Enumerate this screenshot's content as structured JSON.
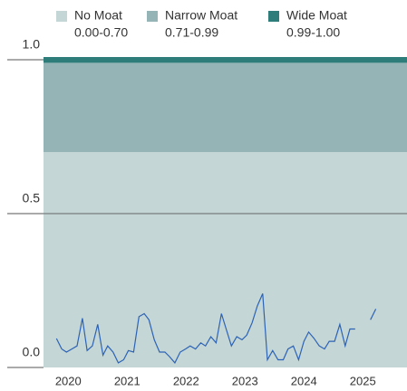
{
  "chart_data": {
    "type": "line",
    "bands": [
      {
        "name": "No Moat",
        "label": "0.00-0.70",
        "range": [
          0.0,
          0.7
        ],
        "color": "#c4d6d6"
      },
      {
        "name": "Narrow Moat",
        "label": "0.71-0.99",
        "range": [
          0.71,
          0.99
        ],
        "color": "#94b4b5"
      },
      {
        "name": "Wide Moat",
        "label": "0.99-1.00",
        "range": [
          0.99,
          1.0
        ],
        "color": "#2e7d7a"
      }
    ],
    "x": [
      2019.8,
      2019.89,
      2019.97,
      2020.06,
      2020.15,
      2020.24,
      2020.32,
      2020.41,
      2020.5,
      2020.59,
      2020.67,
      2020.76,
      2020.85,
      2020.94,
      2021.02,
      2021.11,
      2021.2,
      2021.29,
      2021.37,
      2021.46,
      2021.55,
      2021.64,
      2021.72,
      2021.81,
      2021.9,
      2021.99,
      2022.07,
      2022.16,
      2022.25,
      2022.33,
      2022.42,
      2022.51,
      2022.6,
      2022.68,
      2022.77,
      2022.86,
      2022.95,
      2023.03,
      2023.12,
      2023.21,
      2023.3,
      2023.38,
      2023.47,
      2023.56,
      2023.65,
      2023.73,
      2023.82,
      2023.91,
      2024.0,
      2024.08,
      2024.17,
      2024.26,
      2024.35,
      2024.43,
      2024.52,
      2024.61,
      2024.7,
      2024.78,
      2024.87,
      2024.96
    ],
    "series": [
      {
        "color": "#2d63b5",
        "values": [
          0.094,
          0.06,
          0.05,
          0.06,
          0.07,
          0.16,
          0.055,
          0.07,
          0.14,
          0.04,
          0.07,
          0.05,
          0.015,
          0.025,
          0.055,
          0.05,
          0.165,
          0.175,
          0.155,
          0.09,
          0.05,
          0.05,
          0.035,
          0.015,
          0.05,
          0.06,
          0.07,
          0.06,
          0.08,
          0.07,
          0.1,
          0.08,
          0.175,
          0.125,
          0.07,
          0.1,
          0.09,
          0.105,
          0.145,
          0.2,
          0.24,
          0.025,
          0.055,
          0.025,
          0.025,
          0.06,
          0.07,
          0.025,
          0.085,
          0.115,
          0.095,
          0.07,
          0.06,
          0.085,
          0.085,
          0.14,
          0.07,
          0.125,
          0.125,
          null
        ]
      }
    ],
    "tail": {
      "x": [
        2025.13,
        2025.22
      ],
      "values": [
        0.155,
        0.19
      ]
    },
    "xlim": [
      2019.58,
      2025.75
    ],
    "xticks": [
      2020,
      2021,
      2022,
      2023,
      2024,
      2025
    ],
    "ylim": [
      0,
      1.0
    ],
    "yticks": [
      {
        "value": 0,
        "label": "0.0"
      },
      0.5,
      {
        "value": 1,
        "label": "1.0"
      }
    ]
  }
}
